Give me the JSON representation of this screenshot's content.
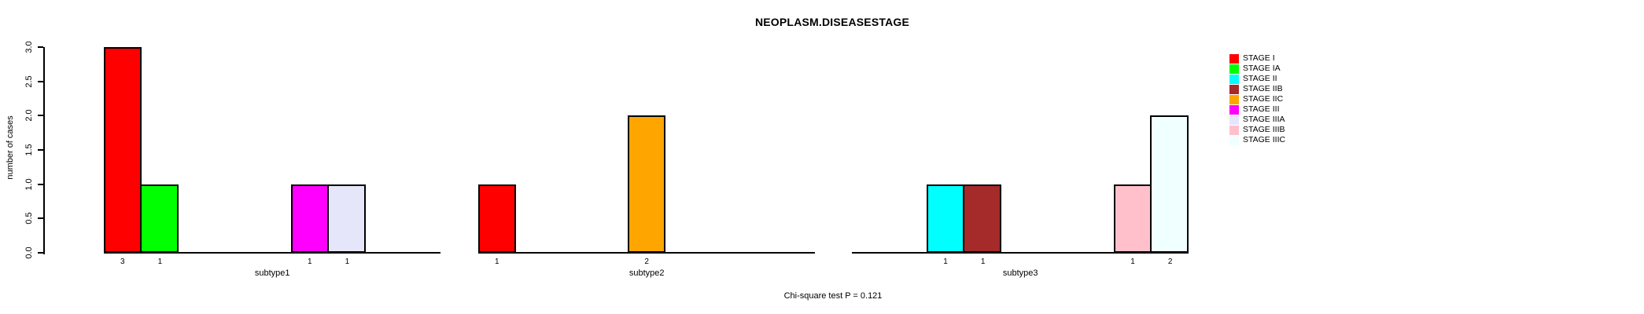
{
  "chart_data": {
    "type": "bar",
    "title": "NEOPLASM.DISEASESTAGE",
    "ylabel": "number of cases",
    "note": "Chi-square test P = 0.121",
    "ylim": [
      0,
      3
    ],
    "yticks": [
      "0.0",
      "0.5",
      "1.0",
      "1.5",
      "2.0",
      "2.5",
      "3.0"
    ],
    "categories": [
      "subtype1",
      "subtype2",
      "subtype3"
    ],
    "series": [
      {
        "name": "STAGE I",
        "color": "#FF0000",
        "values": [
          3,
          1,
          0
        ]
      },
      {
        "name": "STAGE IA",
        "color": "#00FF00",
        "values": [
          1,
          0,
          0
        ]
      },
      {
        "name": "STAGE II",
        "color": "#00FFFF",
        "values": [
          0,
          0,
          1
        ]
      },
      {
        "name": "STAGE IIB",
        "color": "#A52A2A",
        "values": [
          0,
          0,
          1
        ]
      },
      {
        "name": "STAGE IIC",
        "color": "#FFA500",
        "values": [
          0,
          2,
          0
        ]
      },
      {
        "name": "STAGE III",
        "color": "#FF00FF",
        "values": [
          1,
          0,
          0
        ]
      },
      {
        "name": "STAGE IIIA",
        "color": "#E6E6FA",
        "values": [
          1,
          0,
          0
        ]
      },
      {
        "name": "STAGE IIIB",
        "color": "#FFC0CB",
        "values": [
          0,
          0,
          1
        ]
      },
      {
        "name": "STAGE IIIC",
        "color": "#F0FFFF",
        "values": [
          0,
          0,
          2
        ]
      }
    ],
    "legend_position": "right",
    "grid": false,
    "background": "#FFFFFF"
  }
}
